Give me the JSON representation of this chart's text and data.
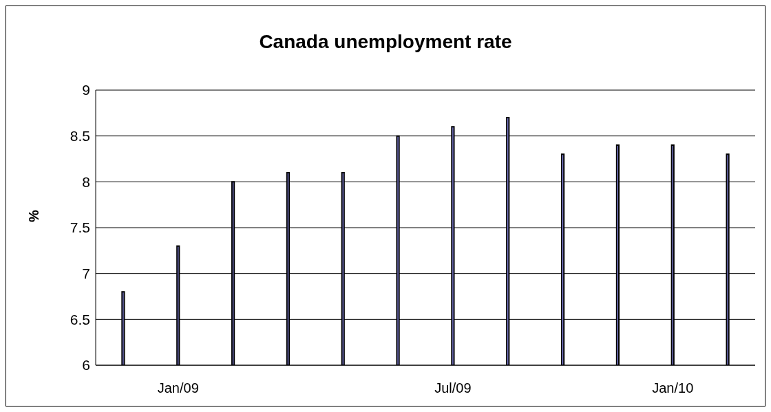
{
  "chart_data": {
    "type": "bar",
    "title": "Canada unemployment rate",
    "ylabel": "%",
    "categories": [
      null,
      "Jan/09",
      null,
      null,
      null,
      null,
      "Jul/09",
      null,
      null,
      null,
      "Jan/10",
      null
    ],
    "values": [
      6.8,
      7.3,
      8.0,
      8.1,
      8.1,
      8.5,
      8.6,
      8.7,
      8.3,
      8.4,
      8.4,
      8.3
    ],
    "color": "#9999ff",
    "ylim": [
      6,
      9
    ],
    "yticks": [
      6,
      6.5,
      7,
      7.5,
      8,
      8.5,
      9
    ],
    "grid": "y"
  }
}
